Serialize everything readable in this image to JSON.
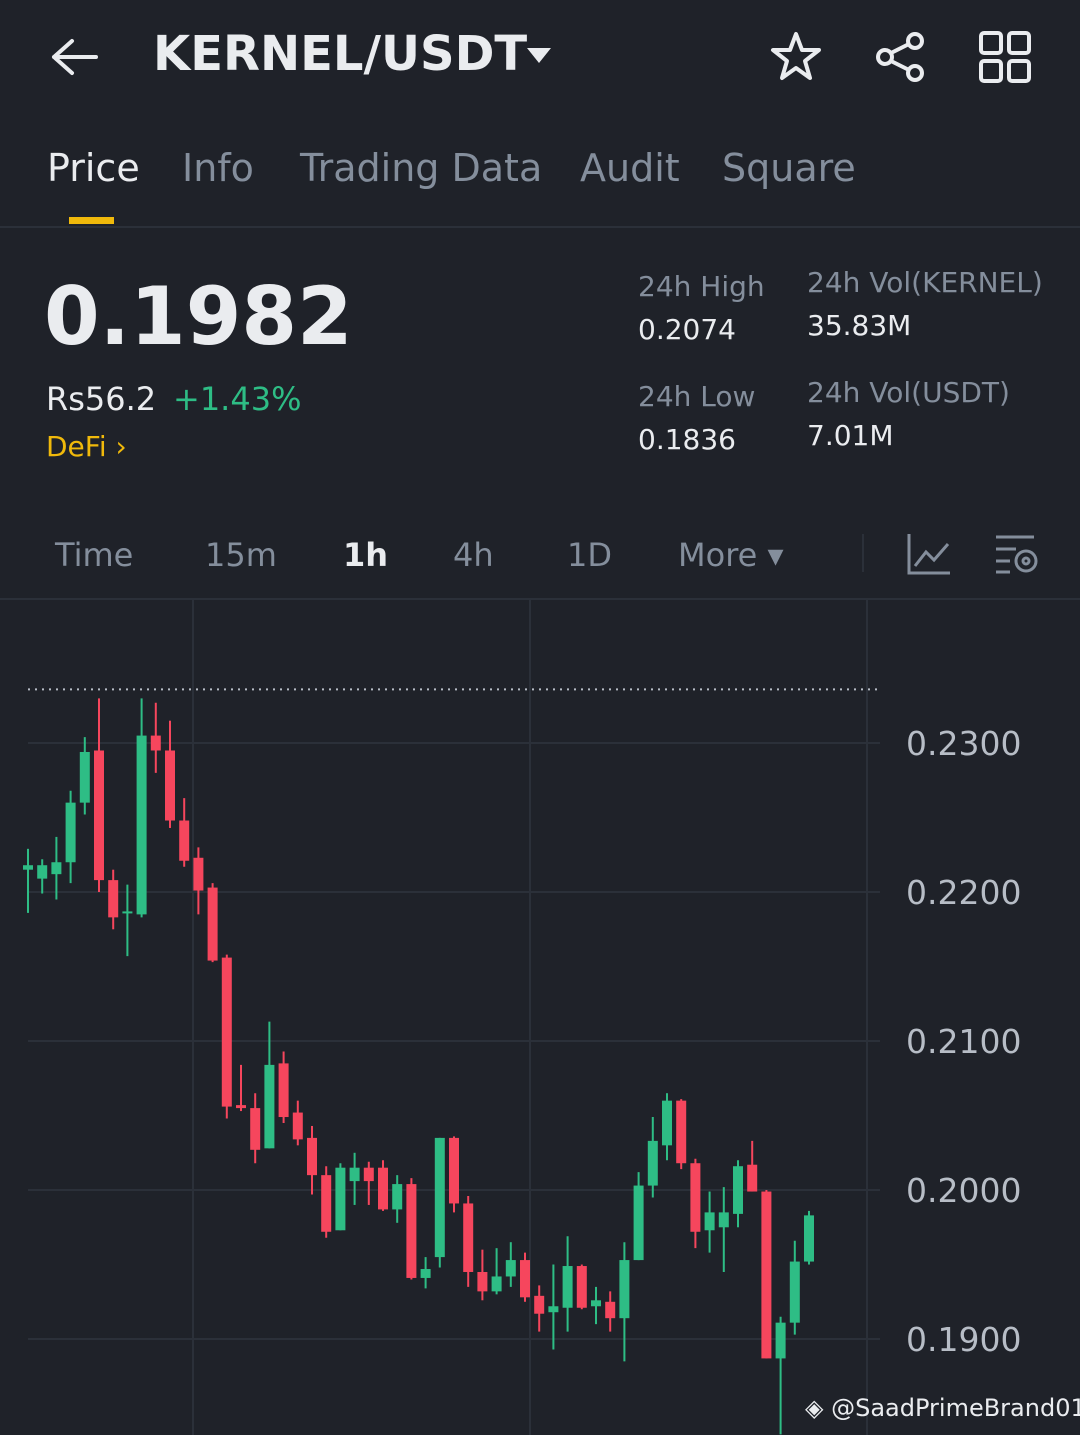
{
  "header": {
    "title": "KERNEL/USDT"
  },
  "tabs": [
    "Price",
    "Info",
    "Trading Data",
    "Audit",
    "Square"
  ],
  "price": {
    "last": "0.1982",
    "fiat": "Rs56.2",
    "change": "+1.43%",
    "tag": "DeFi"
  },
  "stats": [
    {
      "label": "24h High",
      "value": "0.2074"
    },
    {
      "label": "24h Vol(KERNEL)",
      "value": "35.83M"
    },
    {
      "label": "24h Low",
      "value": "0.1836"
    },
    {
      "label": "24h Vol(USDT)",
      "value": "7.01M"
    }
  ],
  "intervals": [
    "Time",
    "15m",
    "1h",
    "4h",
    "1D",
    "More"
  ],
  "chart": {
    "type": "candlestick",
    "up_color": "#2ebd85",
    "down_color": "#f6465d",
    "ylim": [
      0.18356,
      0.2396
    ],
    "yticks": [
      {
        "value": 0.23,
        "label": "0.2300"
      },
      {
        "value": 0.22,
        "label": "0.2200"
      },
      {
        "value": 0.21,
        "label": "0.2100"
      },
      {
        "value": 0.2,
        "label": "0.2000"
      },
      {
        "value": 0.19,
        "label": "0.1900"
      }
    ],
    "max_line": 0.2336,
    "candles": [
      {
        "open": 0.2215,
        "close": 0.2218,
        "high": 0.2229,
        "low": 0.2186
      },
      {
        "open": 0.2209,
        "close": 0.2218,
        "high": 0.2222,
        "low": 0.2199
      },
      {
        "open": 0.2212,
        "close": 0.222,
        "high": 0.2237,
        "low": 0.2195
      },
      {
        "open": 0.222,
        "close": 0.226,
        "high": 0.2268,
        "low": 0.2206
      },
      {
        "open": 0.226,
        "close": 0.2294,
        "high": 0.2304,
        "low": 0.2252
      },
      {
        "open": 0.2295,
        "close": 0.2208,
        "high": 0.233,
        "low": 0.22
      },
      {
        "open": 0.2208,
        "close": 0.2183,
        "high": 0.2215,
        "low": 0.2175
      },
      {
        "open": 0.2186,
        "close": 0.2187,
        "high": 0.2205,
        "low": 0.2157
      },
      {
        "open": 0.2185,
        "close": 0.2305,
        "high": 0.233,
        "low": 0.2183
      },
      {
        "open": 0.2305,
        "close": 0.2295,
        "high": 0.2327,
        "low": 0.228
      },
      {
        "open": 0.2295,
        "close": 0.2248,
        "high": 0.2315,
        "low": 0.2243
      },
      {
        "open": 0.2248,
        "close": 0.2221,
        "high": 0.2263,
        "low": 0.2217
      },
      {
        "open": 0.2223,
        "close": 0.2201,
        "high": 0.223,
        "low": 0.2185
      },
      {
        "open": 0.2203,
        "close": 0.2154,
        "high": 0.2206,
        "low": 0.2153
      },
      {
        "open": 0.2156,
        "close": 0.2056,
        "high": 0.2158,
        "low": 0.2048
      },
      {
        "open": 0.2057,
        "close": 0.2055,
        "high": 0.2084,
        "low": 0.2053
      },
      {
        "open": 0.2055,
        "close": 0.2027,
        "high": 0.2065,
        "low": 0.2018
      },
      {
        "open": 0.2028,
        "close": 0.2084,
        "high": 0.2113,
        "low": 0.2028
      },
      {
        "open": 0.2085,
        "close": 0.2049,
        "high": 0.2093,
        "low": 0.2045
      },
      {
        "open": 0.2052,
        "close": 0.2034,
        "high": 0.206,
        "low": 0.203
      },
      {
        "open": 0.2035,
        "close": 0.201,
        "high": 0.2043,
        "low": 0.1997
      },
      {
        "open": 0.201,
        "close": 0.1972,
        "high": 0.2016,
        "low": 0.1968
      },
      {
        "open": 0.1973,
        "close": 0.2015,
        "high": 0.2018,
        "low": 0.1973
      },
      {
        "open": 0.2006,
        "close": 0.2015,
        "high": 0.2025,
        "low": 0.199
      },
      {
        "open": 0.2015,
        "close": 0.2006,
        "high": 0.2019,
        "low": 0.199
      },
      {
        "open": 0.2015,
        "close": 0.1987,
        "high": 0.202,
        "low": 0.1986
      },
      {
        "open": 0.1987,
        "close": 0.2004,
        "high": 0.201,
        "low": 0.1978
      },
      {
        "open": 0.2004,
        "close": 0.1941,
        "high": 0.2008,
        "low": 0.194
      },
      {
        "open": 0.1941,
        "close": 0.1947,
        "high": 0.1955,
        "low": 0.1934
      },
      {
        "open": 0.1955,
        "close": 0.2035,
        "high": 0.2035,
        "low": 0.1948
      },
      {
        "open": 0.2035,
        "close": 0.1991,
        "high": 0.2036,
        "low": 0.1985
      },
      {
        "open": 0.1991,
        "close": 0.1945,
        "high": 0.1996,
        "low": 0.1935
      },
      {
        "open": 0.1945,
        "close": 0.1932,
        "high": 0.196,
        "low": 0.1926
      },
      {
        "open": 0.1932,
        "close": 0.1942,
        "high": 0.1961,
        "low": 0.193
      },
      {
        "open": 0.1942,
        "close": 0.1953,
        "high": 0.1965,
        "low": 0.1935
      },
      {
        "open": 0.1953,
        "close": 0.1928,
        "high": 0.1958,
        "low": 0.1925
      },
      {
        "open": 0.1929,
        "close": 0.1917,
        "high": 0.1936,
        "low": 0.1905
      },
      {
        "open": 0.1918,
        "close": 0.1922,
        "high": 0.195,
        "low": 0.1893
      },
      {
        "open": 0.1921,
        "close": 0.1949,
        "high": 0.1969,
        "low": 0.1905
      },
      {
        "open": 0.1949,
        "close": 0.1921,
        "high": 0.195,
        "low": 0.192
      },
      {
        "open": 0.1922,
        "close": 0.1926,
        "high": 0.1935,
        "low": 0.191
      },
      {
        "open": 0.1925,
        "close": 0.1914,
        "high": 0.1932,
        "low": 0.1905
      },
      {
        "open": 0.1914,
        "close": 0.1953,
        "high": 0.1965,
        "low": 0.1885
      },
      {
        "open": 0.1953,
        "close": 0.2003,
        "high": 0.2012,
        "low": 0.1953
      },
      {
        "open": 0.2003,
        "close": 0.2033,
        "high": 0.2049,
        "low": 0.1995
      },
      {
        "open": 0.203,
        "close": 0.206,
        "high": 0.2065,
        "low": 0.202
      },
      {
        "open": 0.206,
        "close": 0.2018,
        "high": 0.2061,
        "low": 0.2014
      },
      {
        "open": 0.2018,
        "close": 0.1972,
        "high": 0.2021,
        "low": 0.1961
      },
      {
        "open": 0.1973,
        "close": 0.1985,
        "high": 0.1999,
        "low": 0.1958
      },
      {
        "open": 0.1975,
        "close": 0.1985,
        "high": 0.2002,
        "low": 0.1945
      },
      {
        "open": 0.1984,
        "close": 0.2016,
        "high": 0.202,
        "low": 0.1975
      },
      {
        "open": 0.2017,
        "close": 0.1999,
        "high": 0.2033,
        "low": 0.1999
      },
      {
        "open": 0.1999,
        "close": 0.1887,
        "high": 0.2,
        "low": 0.1887
      },
      {
        "open": 0.1887,
        "close": 0.1911,
        "high": 0.1915,
        "low": 0.1836
      },
      {
        "open": 0.1911,
        "close": 0.1952,
        "high": 0.1966,
        "low": 0.1903
      },
      {
        "open": 0.1952,
        "close": 0.1983,
        "high": 0.1986,
        "low": 0.195
      }
    ]
  },
  "watermark": "@SaadPrimeBrand01"
}
